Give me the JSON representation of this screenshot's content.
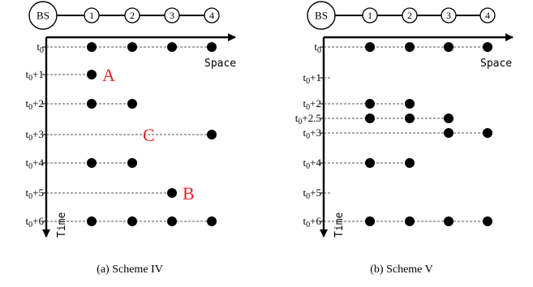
{
  "diagrams": [
    {
      "caption": "(a) Scheme IV",
      "bs_label": "BS",
      "nodes": [
        "1",
        "2",
        "3",
        "4"
      ],
      "axis_x_label": "Space",
      "axis_y_label": "Time",
      "rows": [
        {
          "label_base": "t",
          "label_sub": "0",
          "label_suffix": "",
          "dots": [
            1,
            2,
            3,
            4
          ]
        },
        {
          "label_base": "t",
          "label_sub": "0",
          "label_suffix": "+1",
          "dots": [
            1
          ]
        },
        {
          "label_base": "t",
          "label_sub": "0",
          "label_suffix": "+2",
          "dots": [
            1,
            2
          ]
        },
        {
          "label_base": "t",
          "label_sub": "0",
          "label_suffix": "+3",
          "dots": [
            4
          ]
        },
        {
          "label_base": "t",
          "label_sub": "0",
          "label_suffix": "+4",
          "dots": [
            1,
            2
          ]
        },
        {
          "label_base": "t",
          "label_sub": "0",
          "label_suffix": "+5",
          "dots": [
            3
          ]
        },
        {
          "label_base": "t",
          "label_sub": "0",
          "label_suffix": "+6",
          "dots": [
            1,
            2,
            3,
            4
          ]
        }
      ],
      "marks": [
        {
          "text": "A",
          "row": 1,
          "after_node": 1
        },
        {
          "text": "C",
          "row": 3,
          "after_node": 2
        },
        {
          "text": "B",
          "row": 5,
          "after_node": 3
        }
      ]
    },
    {
      "caption": "(b) Scheme V",
      "bs_label": "BS",
      "nodes": [
        "1",
        "2",
        "3",
        "4"
      ],
      "axis_x_label": "Space",
      "axis_y_label": "Time",
      "rows": [
        {
          "label_base": "t",
          "label_sub": "0",
          "label_suffix": "",
          "dots": [
            1,
            2,
            3,
            4
          ]
        },
        {
          "label_base": "t",
          "label_sub": "0",
          "label_suffix": "+1",
          "dots": []
        },
        {
          "label_base": "t",
          "label_sub": "0",
          "label_suffix": "+2",
          "dots": [
            1,
            2
          ]
        },
        {
          "label_base": "t",
          "label_sub": "0",
          "label_suffix": "+2.5",
          "dots": [
            1,
            2,
            3
          ]
        },
        {
          "label_base": "t",
          "label_sub": "0",
          "label_suffix": "+3",
          "dots": [
            3,
            4
          ]
        },
        {
          "label_base": "t",
          "label_sub": "0",
          "label_suffix": "+4",
          "dots": [
            1,
            2
          ]
        },
        {
          "label_base": "t",
          "label_sub": "0",
          "label_suffix": "+5",
          "dots": []
        },
        {
          "label_base": "t",
          "label_sub": "0",
          "label_suffix": "+6",
          "dots": [
            1,
            2,
            3,
            4
          ]
        }
      ],
      "marks": []
    }
  ]
}
